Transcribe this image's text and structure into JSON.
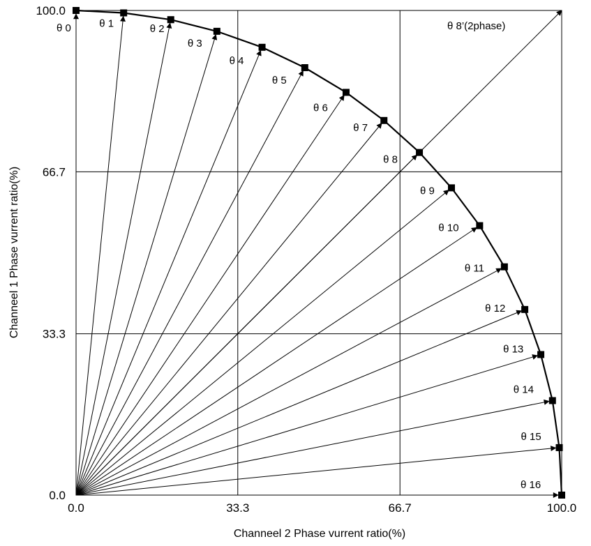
{
  "chart_data": {
    "type": "line",
    "xlabel": "Channeel 2 Phase vurrent ratio(%)",
    "ylabel": "Channeel 1 Phase vurrent ratio(%)",
    "xlim": [
      0,
      100
    ],
    "ylim": [
      0,
      100
    ],
    "grid": true,
    "x_ticks": [
      "0.0",
      "33.3",
      "66.7",
      "100.0"
    ],
    "y_ticks": [
      "0.0",
      "33.3",
      "66.7",
      "100.0"
    ],
    "tick_values": [
      0,
      33.3,
      66.7,
      100
    ],
    "points": [
      {
        "label": "θ 0",
        "x": 0.0,
        "y": 100.0
      },
      {
        "label": "θ 1",
        "x": 9.8,
        "y": 99.5
      },
      {
        "label": "θ 2",
        "x": 19.5,
        "y": 98.1
      },
      {
        "label": "θ 3",
        "x": 29.0,
        "y": 95.7
      },
      {
        "label": "θ 4",
        "x": 38.3,
        "y": 92.4
      },
      {
        "label": "θ 5",
        "x": 47.1,
        "y": 88.2
      },
      {
        "label": "θ 6",
        "x": 55.6,
        "y": 83.1
      },
      {
        "label": "θ 7",
        "x": 63.4,
        "y": 77.3
      },
      {
        "label": "θ 8",
        "x": 70.7,
        "y": 70.7
      },
      {
        "label": "θ 9",
        "x": 77.3,
        "y": 63.4
      },
      {
        "label": "θ 10",
        "x": 83.1,
        "y": 55.6
      },
      {
        "label": "θ 11",
        "x": 88.2,
        "y": 47.1
      },
      {
        "label": "θ 12",
        "x": 92.4,
        "y": 38.3
      },
      {
        "label": "θ 13",
        "x": 95.7,
        "y": 29.0
      },
      {
        "label": "θ 14",
        "x": 98.1,
        "y": 19.5
      },
      {
        "label": "θ 15",
        "x": 99.5,
        "y": 9.8
      },
      {
        "label": "θ 16",
        "x": 100.0,
        "y": 0.0
      }
    ],
    "extra_vector": {
      "label": "θ 8’(2phase)",
      "x": 100.0,
      "y": 100.0
    },
    "colors": {
      "line": "#000000",
      "grid": "#000000",
      "marker": "#000000",
      "background": "#ffffff"
    }
  }
}
